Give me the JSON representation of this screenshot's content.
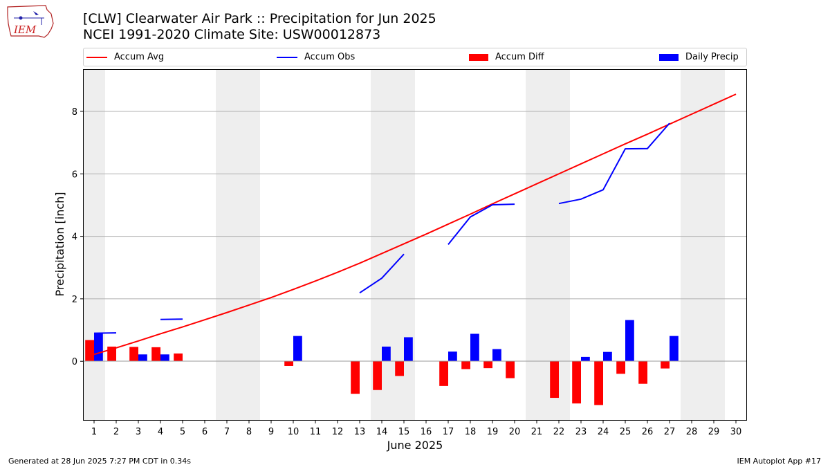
{
  "header": {
    "title_line1": "[CLW] Clearwater Air Park :: Precipitation for Jun 2025",
    "title_line2": "NCEI 1991-2020 Climate Site: USW00012873",
    "logo_text": "IEM"
  },
  "footer": {
    "generated": "Generated at 28 Jun 2025 7:27 PM CDT in 0.34s",
    "app": "IEM Autoplot App #17"
  },
  "chart_data": {
    "type": "bar",
    "title": "[CLW] Clearwater Air Park :: Precipitation for Jun 2025",
    "subtitle": "NCEI 1991-2020 Climate Site: USW00012873",
    "xlabel": "June 2025",
    "ylabel": "Precipitation [inch]",
    "xlim": [
      0.5,
      30.5
    ],
    "ylim": [
      -1.9,
      9.35
    ],
    "yticks": [
      0,
      2,
      4,
      6,
      8
    ],
    "x": [
      1,
      2,
      3,
      4,
      5,
      6,
      7,
      8,
      9,
      10,
      11,
      12,
      13,
      14,
      15,
      16,
      17,
      18,
      19,
      20,
      21,
      22,
      23,
      24,
      25,
      26,
      27,
      28,
      29,
      30
    ],
    "weekend_shading": [
      [
        0.5,
        1.5
      ],
      [
        6.5,
        8.5
      ],
      [
        13.5,
        15.5
      ],
      [
        20.5,
        22.5
      ],
      [
        27.5,
        29.5
      ]
    ],
    "grid": "horizontal",
    "legend_position": "top",
    "colors": {
      "accum_avg": "#ff0000",
      "accum_obs": "#0000ff",
      "accum_diff": "#ff0000",
      "daily_precip": "#0000ff",
      "shading": "#eeeeee"
    },
    "series": [
      {
        "name": "Accum Avg",
        "type": "line",
        "values": [
          0.22,
          0.43,
          0.65,
          0.88,
          1.1,
          1.33,
          1.56,
          1.8,
          2.04,
          2.3,
          2.57,
          2.85,
          3.14,
          3.45,
          3.76,
          4.07,
          4.39,
          4.71,
          5.04,
          5.36,
          5.68,
          6.0,
          6.32,
          6.64,
          6.96,
          7.27,
          7.59,
          7.91,
          8.23,
          8.55
        ]
      },
      {
        "name": "Accum Obs",
        "type": "line",
        "values": [
          0.9,
          0.91,
          null,
          1.34,
          1.35,
          null,
          null,
          null,
          null,
          null,
          null,
          null,
          2.19,
          2.66,
          3.43,
          null,
          3.74,
          4.62,
          5.01,
          5.03,
          null,
          5.05,
          5.19,
          5.49,
          6.8,
          6.81,
          7.62,
          null,
          null,
          null
        ]
      },
      {
        "name": "Accum Diff",
        "type": "bar",
        "values": [
          0.68,
          0.47,
          0.46,
          0.45,
          0.25,
          null,
          null,
          null,
          null,
          -0.15,
          null,
          null,
          -1.04,
          -0.92,
          -0.47,
          null,
          -0.79,
          -0.25,
          -0.22,
          -0.54,
          null,
          -1.17,
          -1.35,
          -1.4,
          -0.4,
          -0.72,
          -0.23,
          null,
          null,
          null
        ]
      },
      {
        "name": "Daily Precip",
        "type": "bar",
        "values": [
          0.9,
          0.01,
          0.22,
          0.22,
          0.01,
          null,
          null,
          null,
          null,
          0.81,
          null,
          null,
          0.01,
          0.47,
          0.77,
          null,
          0.31,
          0.88,
          0.39,
          0.01,
          null,
          0.01,
          0.14,
          0.3,
          1.32,
          0.01,
          0.81,
          null,
          null,
          null
        ]
      }
    ]
  }
}
